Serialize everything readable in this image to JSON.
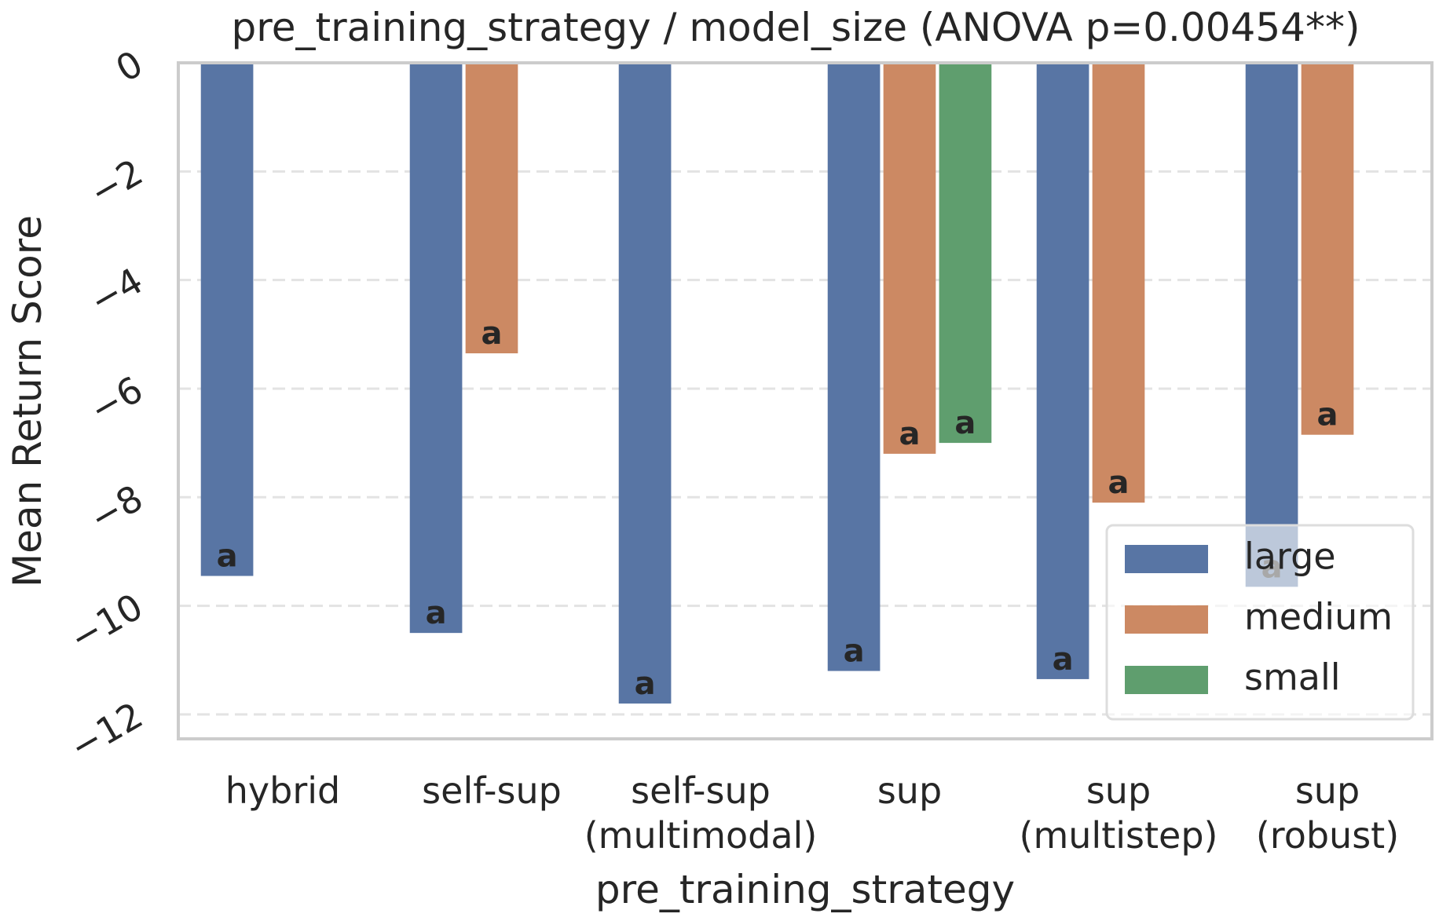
{
  "chart_data": {
    "type": "bar",
    "title": "pre_training_strategy / model_size  (ANOVA p=0.00454**)",
    "xlabel": "pre_training_strategy",
    "ylabel": "Mean Return Score",
    "categories": [
      [
        "hybrid"
      ],
      [
        "self-sup"
      ],
      [
        "self-sup",
        "(multimodal)"
      ],
      [
        "sup"
      ],
      [
        "sup",
        "(multistep)"
      ],
      [
        "sup",
        "(robust)"
      ]
    ],
    "series": [
      {
        "name": "large",
        "color": "#5875a4",
        "values": [
          -9.45,
          -10.5,
          -11.8,
          -11.2,
          -11.35,
          -9.65
        ],
        "labels": [
          "a",
          "a",
          "a",
          "a",
          "a",
          "a"
        ]
      },
      {
        "name": "medium",
        "color": "#cc8963",
        "values": [
          null,
          -5.35,
          null,
          -7.2,
          -8.1,
          -6.85
        ],
        "labels": [
          null,
          "a",
          null,
          "a",
          "a",
          "a"
        ]
      },
      {
        "name": "small",
        "color": "#5f9e6e",
        "values": [
          null,
          null,
          null,
          -7.0,
          null,
          null
        ],
        "labels": [
          null,
          null,
          null,
          "a",
          null,
          null
        ]
      }
    ],
    "ylim": [
      -12.45,
      0
    ],
    "yticks": [
      0,
      -2,
      -4,
      -6,
      -8,
      -10,
      -12
    ],
    "grid": true,
    "legend_position": "lower-right"
  }
}
